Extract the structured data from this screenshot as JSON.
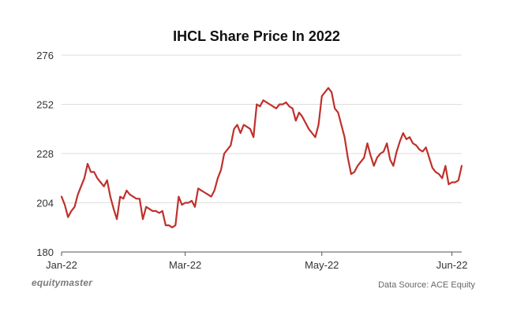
{
  "brand_text": "equitymaster",
  "source_text": "Data Source: ACE Equity",
  "colors": {
    "line": "#c0302b",
    "grid": "#dddddd",
    "axis": "#555555",
    "tick_text": "#333333"
  },
  "chart_data": {
    "type": "line",
    "title": "IHCL Share Price In 2022",
    "xlabel": "",
    "ylabel": "",
    "ylim": [
      180,
      276
    ],
    "yticks": [
      180,
      204,
      228,
      252,
      276
    ],
    "xticks": [
      "Jan-22",
      "Mar-22",
      "May-22",
      "Jun-22"
    ],
    "xtick_index": [
      0,
      38,
      80,
      120
    ],
    "grid": true,
    "series": [
      {
        "values": [
          207,
          203,
          197,
          200,
          202,
          208,
          212,
          216,
          223,
          219,
          219,
          216,
          214,
          212,
          215,
          207,
          201,
          196,
          207,
          206,
          210,
          208,
          207,
          206,
          206,
          196,
          202,
          201,
          200,
          200,
          199,
          200,
          193,
          193,
          192,
          193,
          207,
          203,
          204,
          204,
          205,
          202,
          211,
          210,
          209,
          208,
          207,
          210,
          216,
          220,
          228,
          230,
          232,
          240,
          242,
          238,
          242,
          241,
          240,
          236,
          252,
          251,
          254,
          253,
          252,
          251,
          250,
          252,
          252,
          253,
          251,
          250,
          244,
          248,
          246,
          243,
          240,
          238,
          236,
          242,
          256,
          258,
          260,
          258,
          250,
          248,
          242,
          236,
          226,
          218,
          219,
          222,
          224,
          226,
          233,
          227,
          222,
          226,
          228,
          229,
          233,
          225,
          222,
          229,
          234,
          238,
          235,
          236,
          233,
          232,
          230,
          229,
          231,
          226,
          221,
          219,
          218,
          216,
          222,
          213,
          214,
          214,
          215,
          222
        ]
      }
    ]
  }
}
